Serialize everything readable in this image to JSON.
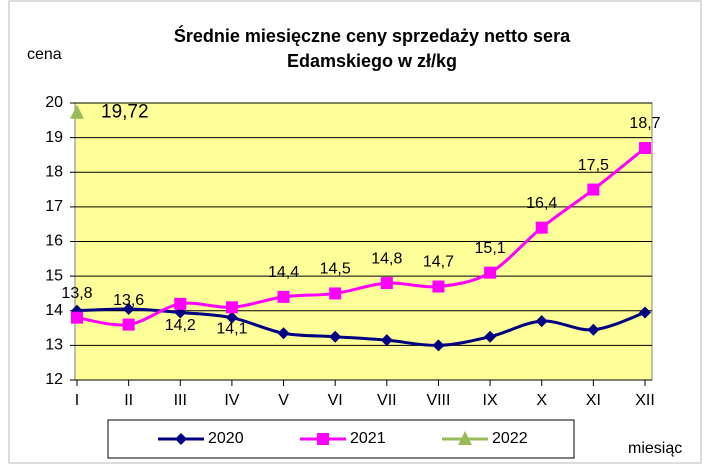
{
  "chart_data": {
    "type": "line",
    "title": [
      "Średnie miesięczne ceny sprzedaży netto sera",
      "Edamskiego w zł/kg"
    ],
    "ylabel": "cena",
    "xlabel": "miesiąc",
    "categories": [
      "I",
      "II",
      "III",
      "IV",
      "V",
      "VI",
      "VII",
      "VIII",
      "IX",
      "X",
      "XI",
      "XII"
    ],
    "ylim": [
      12,
      20
    ],
    "yticks": [
      12,
      13,
      14,
      15,
      16,
      17,
      18,
      19,
      20
    ],
    "grid": true,
    "plot_background": "#ffff99",
    "series": [
      {
        "name": "2020",
        "color": "#000080",
        "marker": "diamond",
        "values": [
          14.0,
          14.05,
          13.95,
          13.8,
          13.35,
          13.25,
          13.15,
          13.0,
          13.25,
          13.7,
          13.45,
          13.95
        ]
      },
      {
        "name": "2021",
        "color": "#ff00ff",
        "marker": "square",
        "values": [
          13.8,
          13.6,
          14.2,
          14.1,
          14.4,
          14.5,
          14.8,
          14.7,
          15.1,
          16.4,
          17.5,
          18.7
        ],
        "value_labels": [
          "13,8",
          "13,6",
          "14,2",
          "14,1",
          "14,4",
          "14,5",
          "14,8",
          "14,7",
          "15,1",
          "16,4",
          "17,5",
          "18,7"
        ]
      },
      {
        "name": "2022",
        "color": "#9bbb59",
        "marker": "triangle",
        "values": [
          19.72,
          null,
          null,
          null,
          null,
          null,
          null,
          null,
          null,
          null,
          null,
          null
        ],
        "value_labels": [
          "19,72",
          null,
          null,
          null,
          null,
          null,
          null,
          null,
          null,
          null,
          null,
          null
        ]
      }
    ]
  }
}
